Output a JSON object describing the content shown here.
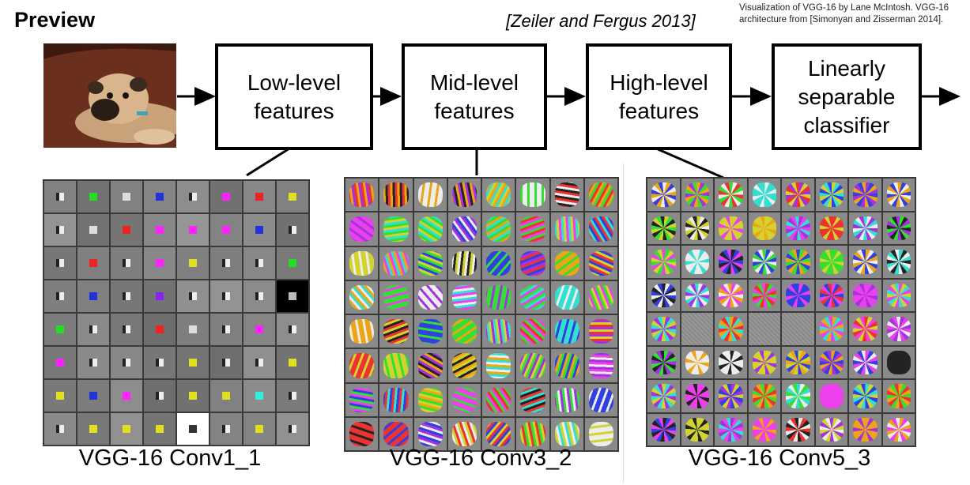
{
  "title": "Preview",
  "citation": "[Zeiler and Fergus 2013]",
  "credit": [
    "Visualization of VGG-16 by Lane McIntosh. VGG-16",
    "architecture from [Simonyan and Zisserman 2014]."
  ],
  "input_image": "pug lying on a leather couch",
  "stages": [
    {
      "lines": [
        "Low-level",
        "features"
      ]
    },
    {
      "lines": [
        "Mid-level",
        "features"
      ]
    },
    {
      "lines": [
        "High-level",
        "features"
      ]
    },
    {
      "lines": [
        "Linearly",
        "separable",
        "classifier"
      ]
    }
  ],
  "panels": [
    {
      "caption": "VGG-16 Conv1_1",
      "style": "low"
    },
    {
      "caption": "VGG-16 Conv3_2",
      "style": "mid"
    },
    {
      "caption": "VGG-16 Conv5_3",
      "style": "high"
    }
  ],
  "colors": {
    "arrow": "#000000",
    "grid_line": "#3a3a3a",
    "filter_bg": "#8a8a8a"
  }
}
